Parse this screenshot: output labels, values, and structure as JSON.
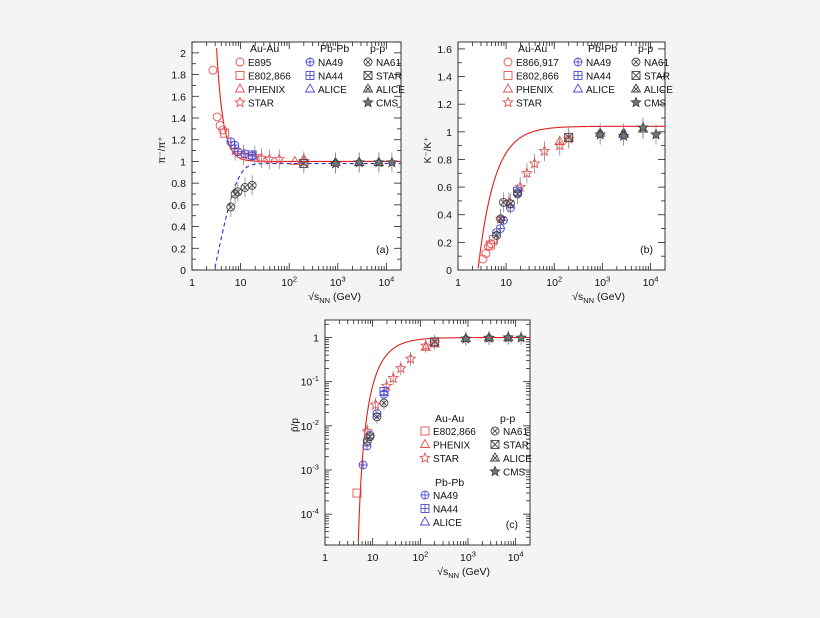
{
  "page": {
    "background": "#f4f4f4"
  },
  "colors": {
    "aa": "#e85050",
    "pbpb": "#4b4bd6",
    "pp": "#444444",
    "fit_red": "#e02020",
    "fit_blue": "#3030d0"
  },
  "chart_data": [
    {
      "id": "a",
      "type": "scatter",
      "panel_label": "(a)",
      "ylabel": "π⁻/π⁺",
      "xlabel": "√s_NN (GeV)",
      "xscale": "log",
      "xlim": [
        1,
        20000
      ],
      "ylim": [
        0,
        2.1
      ],
      "yticks": [
        "0",
        "0.2",
        "0.4",
        "0.6",
        "0.8",
        "1",
        "1.2",
        "1.4",
        "1.6",
        "1.8",
        "2"
      ],
      "xticks": [
        "1",
        "10",
        "10^2",
        "10^3",
        "10^4"
      ],
      "legend_headers": [
        "Au-Au",
        "Pb-Pb",
        "p-p"
      ],
      "legend": [
        {
          "group": "Au-Au",
          "label": "E895",
          "marker": "circle"
        },
        {
          "group": "Au-Au",
          "label": "E802,866",
          "marker": "square"
        },
        {
          "group": "Au-Au",
          "label": "PHENIX",
          "marker": "triangle"
        },
        {
          "group": "Au-Au",
          "label": "STAR",
          "marker": "star"
        },
        {
          "group": "Pb-Pb",
          "label": "NA49",
          "marker": "circleplus"
        },
        {
          "group": "Pb-Pb",
          "label": "NA44",
          "marker": "squareplus"
        },
        {
          "group": "Pb-Pb",
          "label": "ALICE",
          "marker": "triangle"
        },
        {
          "group": "p-p",
          "label": "NA61",
          "marker": "circlex"
        },
        {
          "group": "p-p",
          "label": "STAR",
          "marker": "squarex"
        },
        {
          "group": "p-p",
          "label": "ALICE",
          "marker": "trianglex"
        },
        {
          "group": "p-p",
          "label": "CMS",
          "marker": "starfilled"
        }
      ],
      "series": [
        {
          "name": "E895",
          "marker": "circle",
          "group": "aa",
          "x": [
            2.7,
            3.3,
            3.8,
            4.3
          ],
          "y": [
            1.84,
            1.41,
            1.33,
            1.29
          ]
        },
        {
          "name": "E802,866",
          "marker": "square",
          "group": "aa",
          "x": [
            4.7
          ],
          "y": [
            1.26
          ]
        },
        {
          "name": "STAR",
          "marker": "star",
          "group": "aa",
          "x": [
            7.7,
            11.5,
            19.6,
            27,
            39,
            62.4,
            200
          ],
          "y": [
            1.1,
            1.06,
            1.05,
            1.03,
            1.02,
            1.02,
            1.0
          ]
        },
        {
          "name": "PHENIX",
          "marker": "triangle",
          "group": "aa",
          "x": [
            130,
            200
          ],
          "y": [
            1.0,
            1.02
          ]
        },
        {
          "name": "NA49",
          "marker": "circleplus",
          "group": "pbpb",
          "x": [
            6.3,
            7.6,
            8.8,
            12.3,
            17.3
          ],
          "y": [
            1.18,
            1.15,
            1.09,
            1.07,
            1.05
          ]
        },
        {
          "name": "NA44",
          "marker": "squareplus",
          "group": "pbpb",
          "x": [
            17.3
          ],
          "y": [
            1.06
          ]
        },
        {
          "name": "ALICE",
          "marker": "triangle",
          "group": "pbpb",
          "x": [
            2760
          ],
          "y": [
            0.99
          ]
        },
        {
          "name": "NA61",
          "marker": "circlex",
          "group": "pp",
          "x": [
            6.3,
            7.7,
            8.8,
            12.3,
            17.3
          ],
          "y": [
            0.58,
            0.7,
            0.72,
            0.76,
            0.78
          ]
        },
        {
          "name": "STAR",
          "marker": "squarex",
          "group": "pp",
          "x": [
            200
          ],
          "y": [
            0.98
          ]
        },
        {
          "name": "ALICE",
          "marker": "trianglex",
          "group": "pp",
          "x": [
            900,
            2760,
            7000
          ],
          "y": [
            0.99,
            0.99,
            0.99
          ]
        },
        {
          "name": "CMS",
          "marker": "starfilled",
          "group": "pp",
          "x": [
            900,
            2760,
            7000,
            13000
          ],
          "y": [
            0.98,
            0.99,
            0.99,
            0.99
          ]
        }
      ]
    },
    {
      "id": "b",
      "type": "scatter",
      "panel_label": "(b)",
      "ylabel": "K⁻/K⁺",
      "xlabel": "√s_NN (GeV)",
      "xscale": "log",
      "xlim": [
        1,
        20000
      ],
      "ylim": [
        0,
        1.65
      ],
      "yticks": [
        "0",
        "0.2",
        "0.4",
        "0.6",
        "0.8",
        "1",
        "1.2",
        "1.4",
        "1.6"
      ],
      "xticks": [
        "1",
        "10",
        "10^2",
        "10^3",
        "10^4"
      ],
      "legend_headers": [
        "Au-Au",
        "Pb-Pb",
        "p-p"
      ],
      "legend": [
        {
          "group": "Au-Au",
          "label": "E866,917",
          "marker": "circle"
        },
        {
          "group": "Au-Au",
          "label": "E802,866",
          "marker": "square"
        },
        {
          "group": "Au-Au",
          "label": "PHENIX",
          "marker": "triangle"
        },
        {
          "group": "Au-Au",
          "label": "STAR",
          "marker": "star"
        },
        {
          "group": "Pb-Pb",
          "label": "NA49",
          "marker": "circleplus"
        },
        {
          "group": "Pb-Pb",
          "label": "NA44",
          "marker": "squareplus"
        },
        {
          "group": "Pb-Pb",
          "label": "ALICE",
          "marker": "triangle"
        },
        {
          "group": "p-p",
          "label": "NA61",
          "marker": "circlex"
        },
        {
          "group": "p-p",
          "label": "STAR",
          "marker": "squarex"
        },
        {
          "group": "p-p",
          "label": "ALICE",
          "marker": "trianglex"
        },
        {
          "group": "p-p",
          "label": "CMS",
          "marker": "starfilled"
        }
      ],
      "series": [
        {
          "name": "E866,917",
          "marker": "circle",
          "group": "aa",
          "x": [
            3.3,
            3.8,
            4.3,
            4.9
          ],
          "y": [
            0.08,
            0.12,
            0.17,
            0.19
          ]
        },
        {
          "name": "E802,866",
          "marker": "square",
          "group": "aa",
          "x": [
            4.7,
            5.5
          ],
          "y": [
            0.18,
            0.22
          ]
        },
        {
          "name": "STAR",
          "marker": "star",
          "group": "aa",
          "x": [
            7.7,
            11.5,
            19.6,
            27,
            39,
            62.4,
            130,
            200
          ],
          "y": [
            0.37,
            0.49,
            0.6,
            0.7,
            0.77,
            0.86,
            0.9,
            0.95
          ]
        },
        {
          "name": "PHENIX",
          "marker": "triangle",
          "group": "aa",
          "x": [
            130,
            200
          ],
          "y": [
            0.93,
            0.95
          ]
        },
        {
          "name": "NA49",
          "marker": "circleplus",
          "group": "pbpb",
          "x": [
            6.3,
            7.6,
            8.8,
            12.3,
            17.3
          ],
          "y": [
            0.27,
            0.3,
            0.36,
            0.45,
            0.56
          ]
        },
        {
          "name": "NA44",
          "marker": "squareplus",
          "group": "pbpb",
          "x": [
            17.3
          ],
          "y": [
            0.57
          ]
        },
        {
          "name": "ALICE",
          "marker": "triangle",
          "group": "pbpb",
          "x": [
            2760
          ],
          "y": [
            0.98
          ]
        },
        {
          "name": "NA61",
          "marker": "circlex",
          "group": "pp",
          "x": [
            6.3,
            7.7,
            8.8,
            12.3,
            17.3
          ],
          "y": [
            0.25,
            0.37,
            0.49,
            0.48,
            0.55
          ]
        },
        {
          "name": "STAR",
          "marker": "squarex",
          "group": "pp",
          "x": [
            200
          ],
          "y": [
            0.96
          ]
        },
        {
          "name": "ALICE",
          "marker": "trianglex",
          "group": "pp",
          "x": [
            900,
            2760,
            7000
          ],
          "y": [
            0.99,
            0.99,
            1.02
          ]
        },
        {
          "name": "CMS",
          "marker": "starfilled",
          "group": "pp",
          "x": [
            900,
            2760,
            7000,
            13000
          ],
          "y": [
            0.98,
            0.97,
            1.03,
            0.98
          ]
        }
      ]
    },
    {
      "id": "c",
      "type": "scatter",
      "panel_label": "(c)",
      "ylabel": "p̄/p",
      "xlabel": "√s_NN (GeV)",
      "xscale": "log",
      "yscale": "log",
      "xlim": [
        1,
        20000
      ],
      "ylim": [
        2e-05,
        2.5
      ],
      "yticks": [
        "10^-4",
        "10^-3",
        "10^-2",
        "10^-1",
        "1"
      ],
      "xticks": [
        "1",
        "10",
        "10^2",
        "10^3",
        "10^4"
      ],
      "legend_headers": [
        "Au-Au",
        "Pb-Pb",
        "p-p"
      ],
      "legend": [
        {
          "group": "Au-Au",
          "label": "E802,866",
          "marker": "square"
        },
        {
          "group": "Au-Au",
          "label": "PHENIX",
          "marker": "triangle"
        },
        {
          "group": "Au-Au",
          "label": "STAR",
          "marker": "star"
        },
        {
          "group": "Pb-Pb",
          "label": "NA49",
          "marker": "circleplus"
        },
        {
          "group": "Pb-Pb",
          "label": "NA44",
          "marker": "squareplus"
        },
        {
          "group": "Pb-Pb",
          "label": "ALICE",
          "marker": "triangle"
        },
        {
          "group": "p-p",
          "label": "NA61",
          "marker": "circlex"
        },
        {
          "group": "p-p",
          "label": "STAR",
          "marker": "squarex"
        },
        {
          "group": "p-p",
          "label": "ALICE",
          "marker": "trianglex"
        },
        {
          "group": "p-p",
          "label": "CMS",
          "marker": "starfilled"
        }
      ],
      "series": [
        {
          "name": "E802,866",
          "marker": "square",
          "group": "aa",
          "x": [
            4.7
          ],
          "y": [
            0.0003
          ]
        },
        {
          "name": "STAR",
          "marker": "star",
          "group": "aa",
          "x": [
            7.7,
            11.5,
            19.6,
            27,
            39,
            62.4,
            130,
            200
          ],
          "y": [
            0.0075,
            0.03,
            0.08,
            0.12,
            0.2,
            0.33,
            0.65,
            0.77
          ]
        },
        {
          "name": "PHENIX",
          "marker": "triangle",
          "group": "aa",
          "x": [
            130,
            200
          ],
          "y": [
            0.6,
            0.72
          ]
        },
        {
          "name": "NA49",
          "marker": "circleplus",
          "group": "pbpb",
          "x": [
            6.3,
            7.6,
            8.8,
            12.3,
            17.3
          ],
          "y": [
            0.0013,
            0.0035,
            0.0062,
            0.019,
            0.052
          ]
        },
        {
          "name": "NA44",
          "marker": "squareplus",
          "group": "pbpb",
          "x": [
            17.3
          ],
          "y": [
            0.06
          ]
        },
        {
          "name": "ALICE",
          "marker": "triangle",
          "group": "pbpb",
          "x": [
            2760
          ],
          "y": [
            0.99
          ]
        },
        {
          "name": "NA61",
          "marker": "circlex",
          "group": "pp",
          "x": [
            7.7,
            8.8,
            12.3,
            17.3
          ],
          "y": [
            0.0045,
            0.0057,
            0.016,
            0.033
          ]
        },
        {
          "name": "STAR",
          "marker": "squarex",
          "group": "pp",
          "x": [
            200
          ],
          "y": [
            0.8
          ]
        },
        {
          "name": "ALICE",
          "marker": "trianglex",
          "group": "pp",
          "x": [
            900,
            2760,
            7000
          ],
          "y": [
            0.95,
            0.98,
            0.99
          ]
        },
        {
          "name": "CMS",
          "marker": "starfilled",
          "group": "pp",
          "x": [
            900,
            2760,
            7000,
            13000
          ],
          "y": [
            0.94,
            0.98,
            1.0,
            0.99
          ]
        }
      ]
    }
  ]
}
